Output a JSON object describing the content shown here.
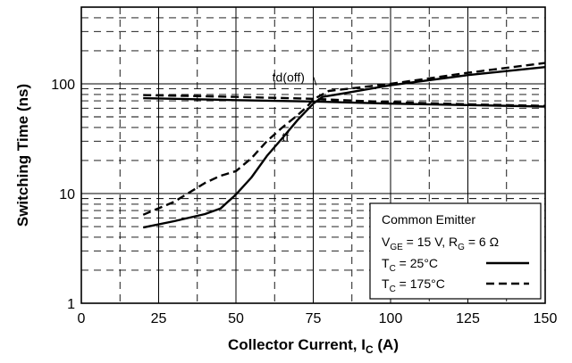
{
  "chart_data": {
    "type": "line",
    "xlabel": "Collector Current, I",
    "xlabel_sub": "C",
    "xlabel_unit": " (A)",
    "ylabel": "Switching Time (ns)",
    "xlim": [
      0,
      150
    ],
    "ylim": [
      1,
      500
    ],
    "y_scale": "log",
    "x_ticks": [
      0,
      25,
      50,
      75,
      100,
      125,
      150
    ],
    "y_ticks": [
      {
        "value": 1,
        "label": "1"
      },
      {
        "value": 10,
        "label": "10"
      },
      {
        "value": 100,
        "label": "100"
      }
    ],
    "grid": true,
    "series": [
      {
        "curve": "td(off)",
        "condition": "25C",
        "style": "solid",
        "x": [
          20,
          50,
          75,
          100,
          125,
          150
        ],
        "y": [
          74,
          71,
          69,
          66,
          64,
          62
        ]
      },
      {
        "curve": "td(off)",
        "condition": "175C",
        "style": "dashed",
        "x": [
          20,
          50,
          75,
          100,
          125,
          150
        ],
        "y": [
          79,
          76,
          73,
          68,
          65,
          63
        ]
      },
      {
        "curve": "tf",
        "condition": "25C",
        "style": "solid",
        "x": [
          20,
          30,
          40,
          45,
          50,
          55,
          60,
          65,
          70,
          75,
          78,
          85,
          100,
          125,
          150
        ],
        "y": [
          4.9,
          5.6,
          6.5,
          7.3,
          9.8,
          14,
          22,
          32,
          47,
          66,
          76,
          82,
          97,
          120,
          142
        ]
      },
      {
        "curve": "tf",
        "condition": "175C",
        "style": "dashed",
        "x": [
          20,
          30,
          40,
          45,
          50,
          55,
          60,
          65,
          70,
          73,
          75,
          80,
          100,
          125,
          150
        ],
        "y": [
          6.4,
          8.4,
          12.5,
          14.5,
          16,
          21,
          30,
          40,
          52,
          62,
          72,
          86,
          100,
          126,
          155
        ]
      }
    ],
    "annotations": [
      {
        "text": "td(off)",
        "x": 67,
        "y": 105,
        "leader_to": [
          76,
          97
        ]
      },
      {
        "text": "tf",
        "x": 66,
        "y": 30
      }
    ],
    "legend": {
      "position": "bottom-right",
      "title": "Common Emitter",
      "conditions": {
        "parts": [
          {
            "t": "V",
            "sub": false
          },
          {
            "t": "GE",
            "sub": true
          },
          {
            "t": " = 15 V, R",
            "sub": false
          },
          {
            "t": "G",
            "sub": true
          },
          {
            "t": " = 6 Ω",
            "sub": false
          }
        ]
      },
      "entries": [
        {
          "prefix": "T",
          "sub": "C",
          "suffix": " = 25°C",
          "style": "solid"
        },
        {
          "prefix": "T",
          "sub": "C",
          "suffix": " = 175°C",
          "style": "dashed"
        }
      ]
    }
  }
}
